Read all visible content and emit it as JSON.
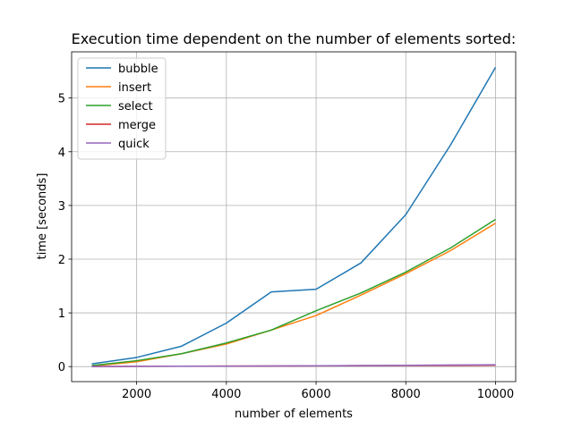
{
  "chart_data": {
    "type": "line",
    "title": "Execution time dependent on the number of elements sorted:",
    "xlabel": "number of elements",
    "ylabel": "time [seconds]",
    "xlim": [
      550,
      10450
    ],
    "ylim": [
      -0.28,
      5.86
    ],
    "xticks": [
      2000,
      4000,
      6000,
      8000,
      10000
    ],
    "yticks": [
      0,
      1,
      2,
      3,
      4,
      5
    ],
    "grid": true,
    "legend_position": "top-left",
    "x": [
      1000,
      2000,
      3000,
      4000,
      5000,
      6000,
      7000,
      8000,
      9000,
      10000
    ],
    "series": [
      {
        "name": "bubble",
        "color": "#1f77b4",
        "values": [
          0.05,
          0.17,
          0.38,
          0.81,
          1.39,
          1.44,
          1.93,
          2.83,
          4.13,
          5.57
        ]
      },
      {
        "name": "insert",
        "color": "#ff7f0e",
        "values": [
          0.01,
          0.09,
          0.24,
          0.42,
          0.68,
          0.95,
          1.33,
          1.73,
          2.16,
          2.67
        ]
      },
      {
        "name": "select",
        "color": "#2ca02c",
        "values": [
          0.02,
          0.11,
          0.24,
          0.44,
          0.68,
          1.04,
          1.37,
          1.76,
          2.21,
          2.74
        ]
      },
      {
        "name": "merge",
        "color": "#d62728",
        "values": [
          0.002,
          0.005,
          0.007,
          0.01,
          0.012,
          0.014,
          0.017,
          0.02,
          0.022,
          0.025
        ]
      },
      {
        "name": "quick",
        "color": "#9467bd",
        "values": [
          0.001,
          0.004,
          0.006,
          0.009,
          0.012,
          0.015,
          0.019,
          0.023,
          0.03,
          0.035
        ]
      }
    ]
  }
}
